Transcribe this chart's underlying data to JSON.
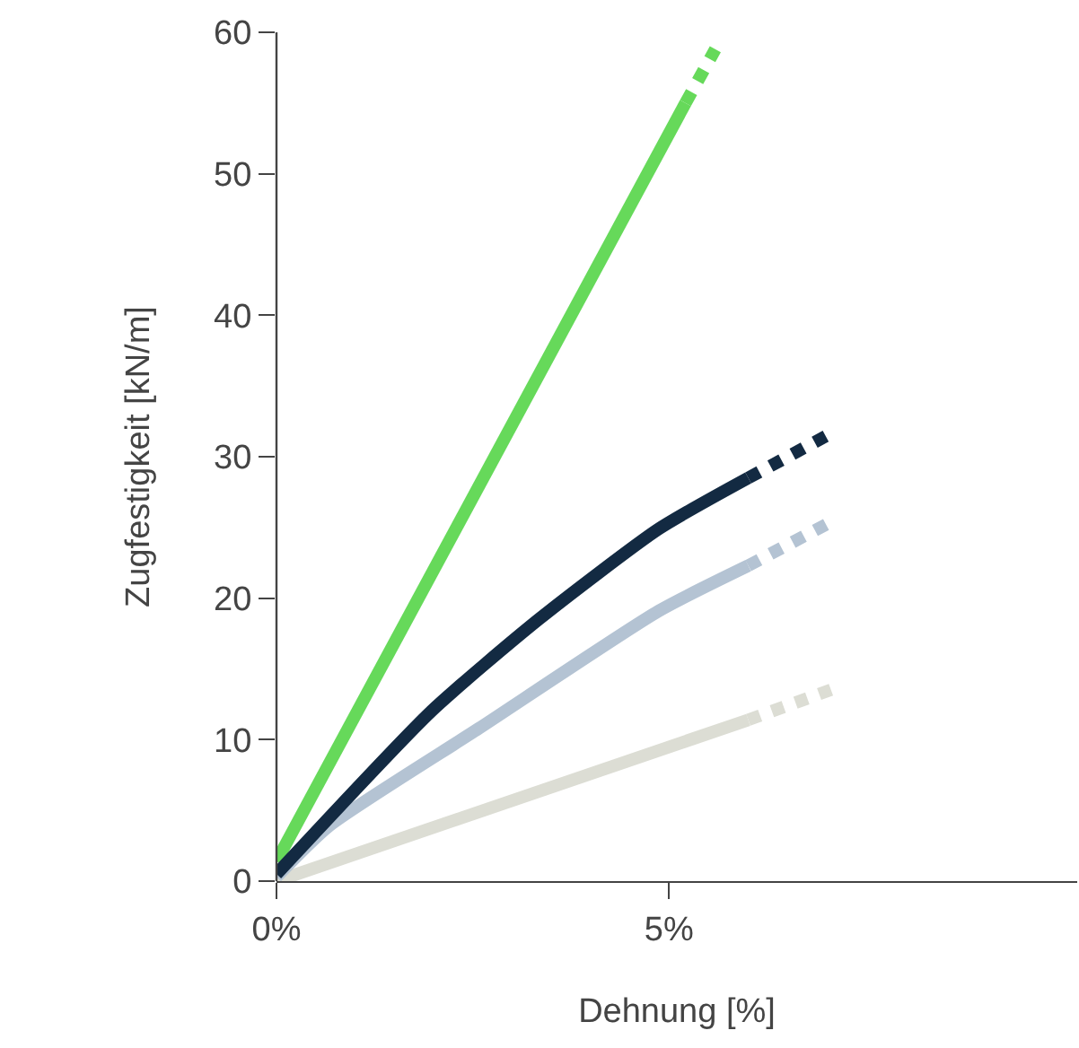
{
  "chart_data": {
    "type": "line",
    "xlabel": "Dehnung [%]",
    "ylabel": "Zugfestigkeit [kN/m]",
    "xlim": [
      0,
      10.2
    ],
    "ylim": [
      0,
      60
    ],
    "xticks": [
      {
        "value": 0,
        "label": "0%"
      },
      {
        "value": 5,
        "label": "5%"
      }
    ],
    "yticks": [
      0,
      10,
      20,
      30,
      40,
      50,
      60
    ],
    "series": [
      {
        "color": "#66d95a",
        "line_style": "solid",
        "x": [
          0,
          5.21
        ],
        "values": [
          1.4,
          55.0
        ]
      },
      {
        "color": "#66d95a",
        "line_style": "dashed",
        "x": [
          5.21,
          5.59
        ],
        "values": [
          55.0,
          58.8
        ]
      },
      {
        "color": "#dcddd4",
        "line_style": "solid",
        "x": [
          0,
          6.01
        ],
        "values": [
          0,
          11.4
        ]
      },
      {
        "color": "#dcddd4",
        "line_style": "dashed",
        "x": [
          6.01,
          7.1
        ],
        "values": [
          11.4,
          13.6
        ]
      },
      {
        "color": "#b4c3d3",
        "line_style": "solid",
        "x": [
          0,
          0.67,
          2.58,
          4.87,
          6.01
        ],
        "values": [
          0.3,
          3.9,
          10.8,
          19.1,
          22.3
        ]
      },
      {
        "color": "#b4c3d3",
        "line_style": "dashed",
        "x": [
          6.01,
          7.1
        ],
        "values": [
          22.3,
          25.5
        ]
      },
      {
        "color": "#132a42",
        "line_style": "solid",
        "x": [
          0,
          1.97,
          3.34,
          4.87,
          6.01
        ],
        "values": [
          0.5,
          12.0,
          18.5,
          24.9,
          28.5
        ]
      },
      {
        "color": "#132a42",
        "line_style": "dashed",
        "x": [
          6.01,
          7.08
        ],
        "values": [
          28.5,
          31.7
        ]
      }
    ]
  }
}
